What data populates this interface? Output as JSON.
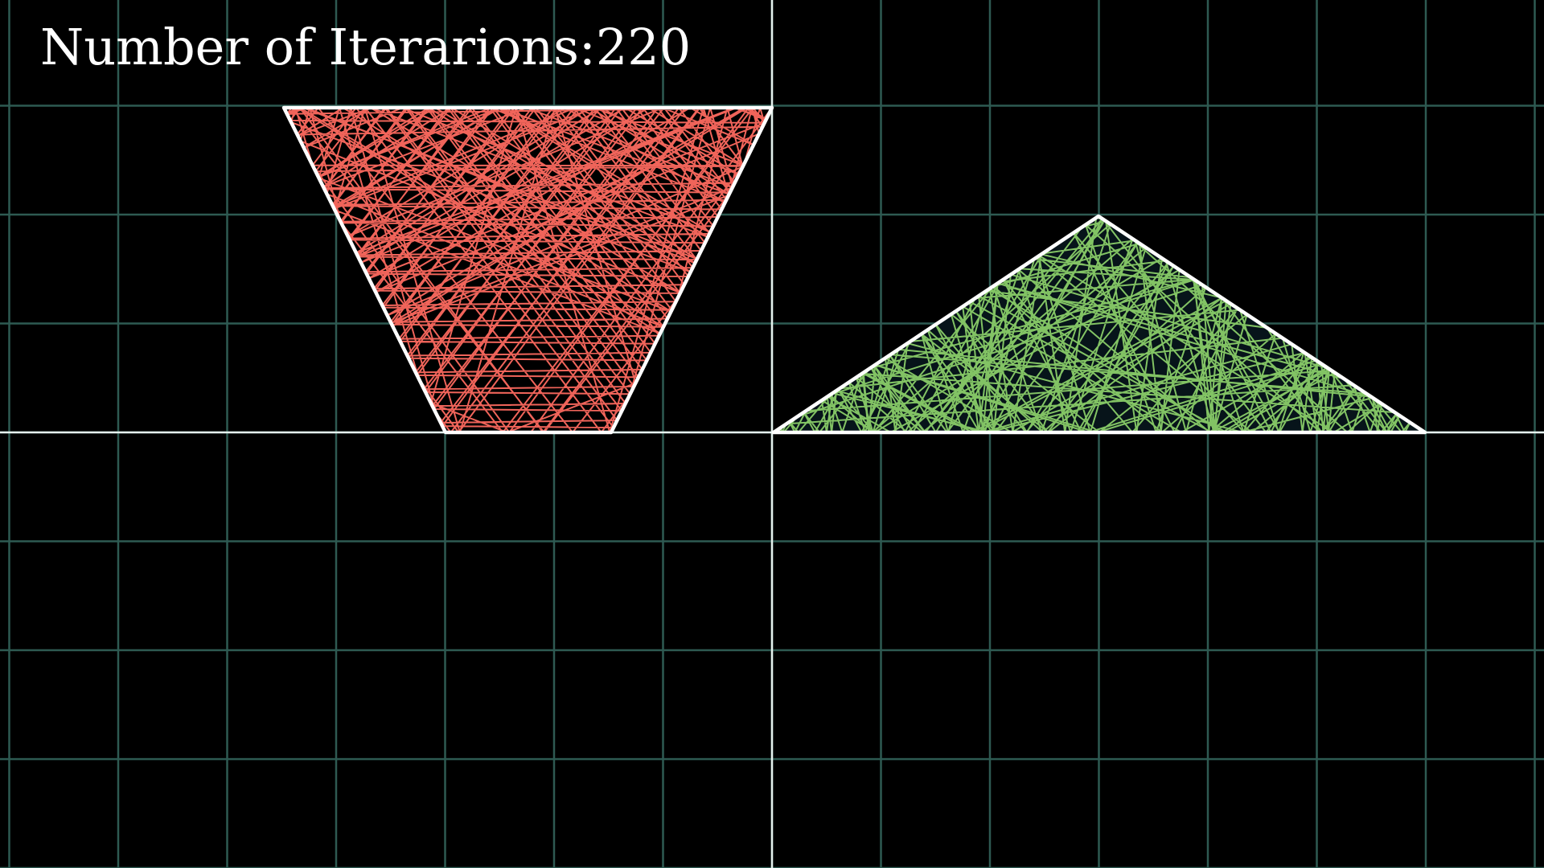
{
  "title": {
    "label": "Number of Iterarions:",
    "count": "220"
  },
  "colors": {
    "background": "#000000",
    "grid": "#2e5a52",
    "axis": "#e6f2ee",
    "outline": "#ffffff",
    "fill": "#07141a",
    "left_lines": "#f0645a",
    "right_lines": "#82c364"
  },
  "figures": {
    "left": {
      "shape": "inverted trapezoid",
      "line_color_name": "red"
    },
    "right": {
      "shape": "triangle",
      "line_color_name": "green"
    }
  }
}
